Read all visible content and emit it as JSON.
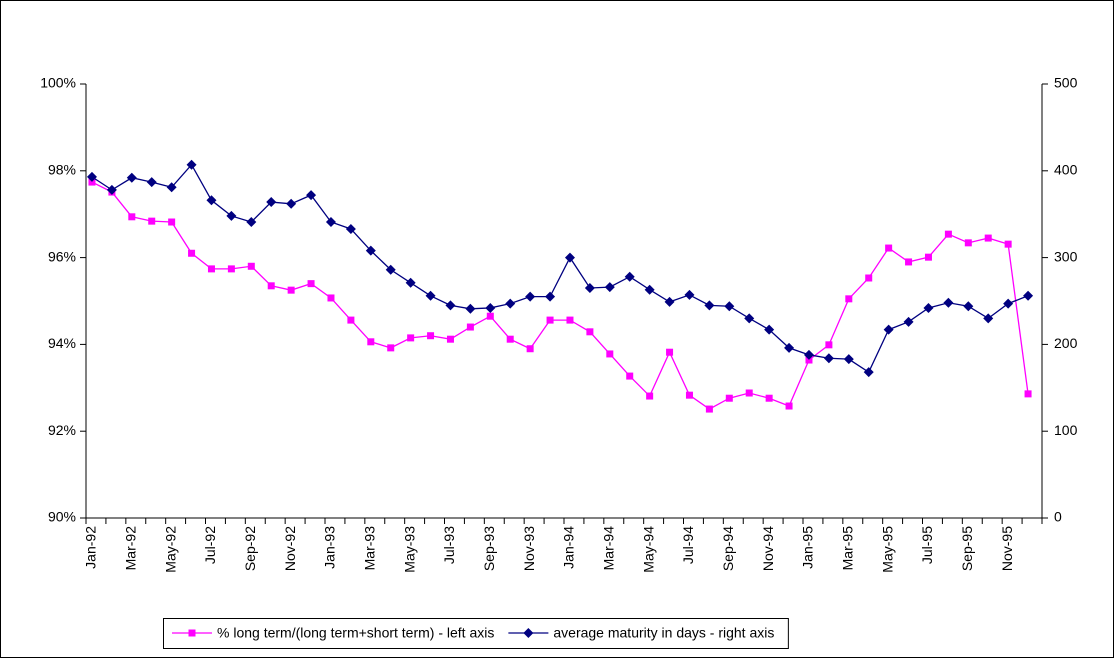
{
  "chart_data": {
    "type": "line",
    "categories": [
      "Jan-92",
      null,
      "Mar-92",
      null,
      "May-92",
      null,
      "Jul-92",
      null,
      "Sep-92",
      null,
      "Nov-92",
      null,
      "Jan-93",
      null,
      "Mar-93",
      null,
      "May-93",
      null,
      "Jul-93",
      null,
      "Sep-93",
      null,
      "Nov-93",
      null,
      "Jan-94",
      null,
      "Mar-94",
      null,
      "May-94",
      null,
      "Jul-94",
      null,
      "Sep-94",
      null,
      "Nov-94",
      null,
      "Jan-95",
      null,
      "Mar-95",
      null,
      "May-95",
      null,
      "Jul-95",
      null,
      "Sep-95",
      null,
      "Nov-95",
      null
    ],
    "series": [
      {
        "name": "% long term/(long term+short term) - left axis",
        "color": "#ff00ff",
        "marker": "square",
        "values": [
          97.74,
          97.51,
          96.94,
          96.84,
          96.82,
          96.1,
          95.74,
          95.74,
          95.8,
          95.35,
          95.25,
          95.4,
          95.07,
          94.56,
          94.06,
          93.92,
          94.15,
          94.2,
          94.12,
          94.4,
          94.65,
          94.12,
          93.9,
          94.56,
          94.56,
          94.29,
          93.78,
          93.27,
          92.81,
          93.82,
          92.83,
          92.51,
          92.76,
          92.88,
          92.76,
          92.58,
          93.64,
          93.99,
          95.05,
          95.53,
          96.22,
          95.9,
          96.01,
          96.54,
          96.34,
          96.45,
          96.31,
          92.86
        ]
      },
      {
        "name": "average maturity in days - right axis",
        "color": "#000080",
        "marker": "diamond",
        "axis": "y2",
        "values": [
          393,
          378,
          392,
          387,
          381,
          407,
          366,
          348,
          341,
          364,
          362,
          372,
          341,
          333,
          308,
          286,
          271,
          256,
          245,
          241,
          242,
          247,
          255,
          255,
          300,
          265,
          266,
          278,
          263,
          249,
          257,
          245,
          244,
          230,
          217,
          196,
          188,
          184,
          183,
          168,
          217,
          226,
          242,
          248,
          244,
          230,
          247,
          256
        ]
      }
    ],
    "ylim": [
      90,
      100
    ],
    "yticks": [
      {
        "value": 90,
        "label": "90%"
      },
      {
        "value": 92,
        "label": "92%"
      },
      {
        "value": 94,
        "label": "94%"
      },
      {
        "value": 96,
        "label": "96%"
      },
      {
        "value": 98,
        "label": "98%"
      },
      {
        "value": 100,
        "label": "100%"
      }
    ],
    "y2lim": [
      0,
      500
    ],
    "y2ticks": [
      0,
      100,
      200,
      300,
      400,
      500
    ],
    "grid": false
  }
}
